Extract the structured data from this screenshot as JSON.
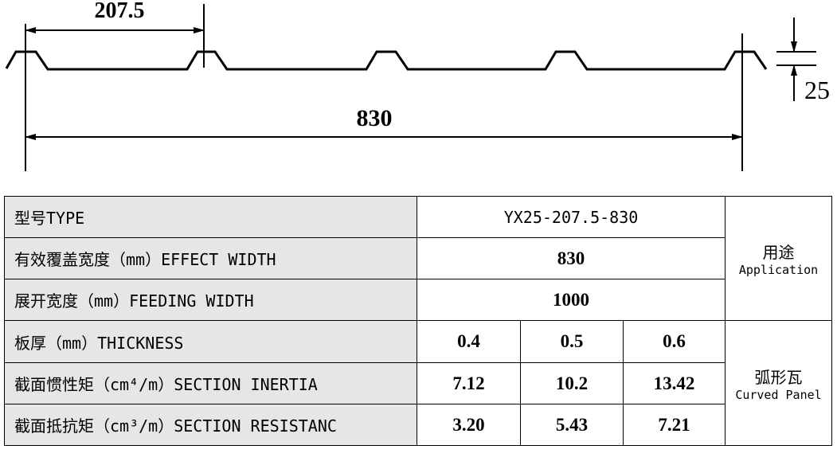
{
  "drawing": {
    "dimensions": {
      "pitch": "207.5",
      "cover_width": "830",
      "height": "25"
    }
  },
  "table": {
    "rows": [
      {
        "label": "型号TYPE",
        "values": [
          "YX25-207.5-830"
        ]
      },
      {
        "label": "有效覆盖宽度（mm）EFFECT WIDTH",
        "values": [
          "830"
        ]
      },
      {
        "label": "展开宽度（mm）FEEDING WIDTH",
        "values": [
          "1000"
        ]
      },
      {
        "label": "板厚（mm）THICKNESS",
        "values": [
          "0.4",
          "0.5",
          "0.6"
        ]
      },
      {
        "label": "截面惯性矩（cm⁴/m）SECTION INERTIA",
        "values": [
          "7.12",
          "10.2",
          "13.42"
        ]
      },
      {
        "label": "截面抵抗矩（cm³/m）SECTION RESISTANC",
        "values": [
          "3.20",
          "5.43",
          "7.21"
        ]
      }
    ],
    "side": [
      {
        "title": "用途",
        "subtitle": "Application"
      },
      {
        "title": "弧形瓦",
        "subtitle": "Curved Panel"
      }
    ]
  }
}
